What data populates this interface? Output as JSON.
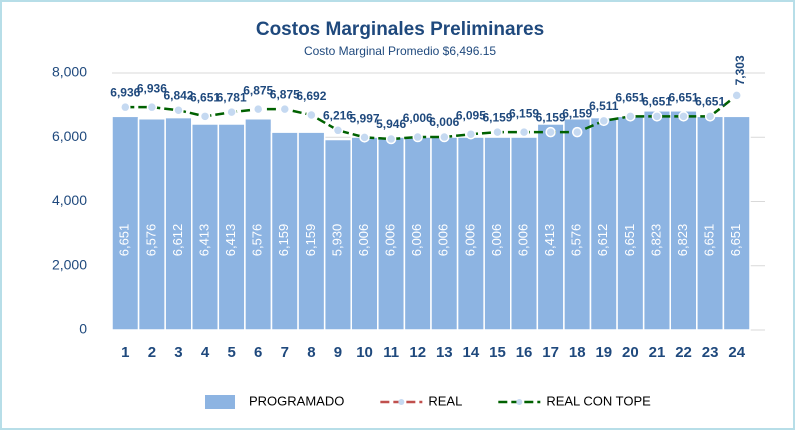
{
  "chart_data": {
    "type": "bar_line",
    "title": "Costos Marginales Preliminares",
    "subtitle": "Costo Marginal Promedio $6,496.15",
    "categories": [
      "1",
      "2",
      "3",
      "4",
      "5",
      "6",
      "7",
      "8",
      "9",
      "10",
      "11",
      "12",
      "13",
      "14",
      "15",
      "16",
      "17",
      "18",
      "19",
      "20",
      "21",
      "22",
      "23",
      "24"
    ],
    "series": [
      {
        "name": "PROGRAMADO",
        "type": "bar",
        "color": "#8db4e2",
        "values": [
          6651,
          6576,
          6612,
          6413,
          6413,
          6576,
          6159,
          6159,
          5930,
          6006,
          6006,
          6006,
          6006,
          6006,
          6006,
          6006,
          6413,
          6576,
          6612,
          6651,
          6823,
          6823,
          6651,
          6651
        ],
        "value_labels": [
          "6,651",
          "6,576",
          "6,612",
          "6,413",
          "6,413",
          "6,576",
          "6,159",
          "6,159",
          "5,930",
          "6,006",
          "6,006",
          "6,006",
          "6,006",
          "6,006",
          "6,006",
          "6,006",
          "6,413",
          "6,576",
          "6,612",
          "6,651",
          "6,823",
          "6,823",
          "6,651",
          "6,651"
        ]
      },
      {
        "name": "REAL",
        "type": "line",
        "color": "#c0504d",
        "values": [
          null,
          null,
          null,
          null,
          null,
          null,
          null,
          null,
          null,
          null,
          null,
          null,
          null,
          null,
          null,
          null,
          null,
          null,
          null,
          null,
          null,
          null,
          null,
          null
        ]
      },
      {
        "name": "REAL CON TOPE",
        "type": "line",
        "color": "#006100",
        "values": [
          6936,
          6936,
          6842,
          6651,
          6781,
          6875,
          6875,
          6692,
          6216,
          5997,
          5946,
          6006,
          6006,
          6095,
          6159,
          6159,
          6159,
          6159,
          6511,
          6651,
          6651,
          6651,
          6651,
          7303
        ],
        "value_labels": [
          "6,936",
          "6,936",
          "6,842",
          "6,651",
          "6,781",
          "6,875",
          "6,875",
          "6,692",
          "6,216",
          "5,997",
          "5,946",
          "6,006",
          "6,006",
          "6,095",
          "6,159",
          "6,159",
          "6,159",
          "6,159",
          "6,511",
          "6,651",
          "6,651",
          "6,651",
          "6,651",
          "7,303"
        ]
      }
    ],
    "ylim": [
      0,
      8000
    ],
    "yticks": [
      0,
      {
        "value": 2000,
        "label": "2,000"
      },
      {
        "value": 4000,
        "label": "4,000"
      },
      {
        "value": 6000,
        "label": "6,000"
      },
      {
        "value": 8000,
        "label": "8,000"
      }
    ],
    "grid": true,
    "legend": "bottom"
  }
}
